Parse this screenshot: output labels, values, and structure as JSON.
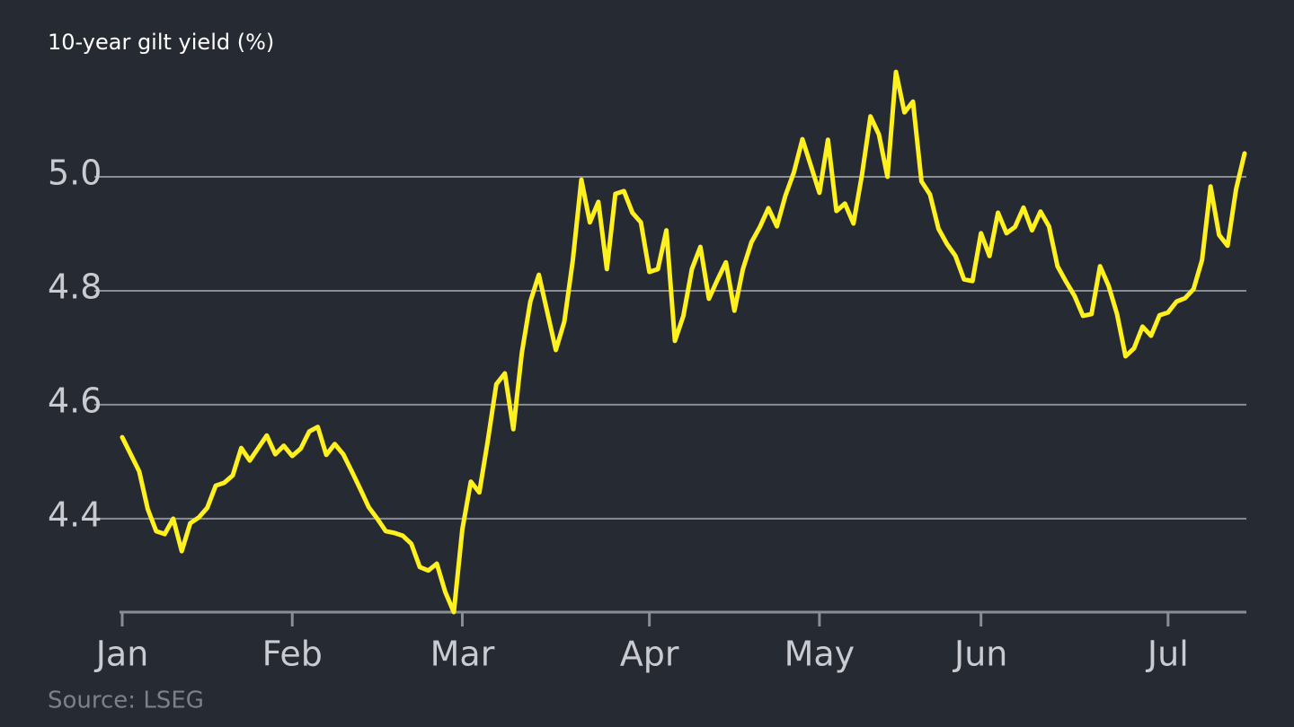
{
  "chart_data": {
    "type": "line",
    "title": "10-year gilt yield (%)",
    "source": "Source: LSEG",
    "categories": [
      "Jan",
      null,
      null,
      null,
      null,
      null,
      null,
      null,
      null,
      null,
      null,
      null,
      null,
      null,
      null,
      null,
      null,
      null,
      null,
      null,
      "Feb",
      null,
      null,
      null,
      null,
      null,
      null,
      null,
      null,
      null,
      null,
      null,
      null,
      null,
      null,
      null,
      null,
      null,
      null,
      null,
      "Mar",
      null,
      null,
      null,
      null,
      null,
      null,
      null,
      null,
      null,
      null,
      null,
      null,
      null,
      null,
      null,
      null,
      null,
      null,
      null,
      null,
      null,
      "Apr",
      null,
      null,
      null,
      null,
      null,
      null,
      null,
      null,
      null,
      null,
      null,
      null,
      null,
      null,
      null,
      null,
      null,
      null,
      null,
      "May",
      null,
      null,
      null,
      null,
      null,
      null,
      null,
      null,
      null,
      null,
      null,
      null,
      null,
      null,
      null,
      null,
      null,
      null,
      "Jun",
      null,
      null,
      null,
      null,
      null,
      null,
      null,
      null,
      null,
      null,
      null,
      null,
      null,
      null,
      null,
      null,
      null,
      null,
      null,
      null,
      null,
      "Jul",
      null,
      null,
      null,
      null,
      null,
      null,
      null,
      null,
      null
    ],
    "series": [
      {
        "name": "10-year gilt yield",
        "color": "#fff01f",
        "values": [
          4.543,
          4.513,
          4.483,
          4.417,
          4.378,
          4.373,
          4.4,
          4.343,
          4.392,
          4.402,
          4.419,
          4.458,
          4.463,
          4.476,
          4.524,
          4.502,
          4.524,
          4.546,
          4.513,
          4.528,
          4.51,
          4.523,
          4.553,
          4.561,
          4.512,
          4.531,
          4.513,
          4.483,
          4.452,
          4.42,
          4.4,
          4.378,
          4.375,
          4.37,
          4.356,
          4.315,
          4.309,
          4.321,
          4.271,
          4.236,
          4.381,
          4.465,
          4.446,
          4.537,
          4.636,
          4.655,
          4.557,
          4.691,
          4.781,
          4.828,
          4.762,
          4.696,
          4.746,
          4.854,
          4.995,
          4.92,
          4.956,
          4.838,
          4.97,
          4.975,
          4.937,
          4.92,
          4.833,
          4.838,
          4.906,
          4.712,
          4.756,
          4.838,
          4.877,
          4.786,
          4.819,
          4.85,
          4.765,
          4.838,
          4.885,
          4.912,
          4.945,
          4.913,
          4.967,
          5.008,
          5.066,
          5.019,
          4.972,
          5.065,
          4.94,
          4.953,
          4.918,
          5.003,
          5.106,
          5.074,
          5.0,
          5.184,
          5.113,
          5.132,
          4.992,
          4.969,
          4.909,
          4.882,
          4.861,
          4.82,
          4.817,
          4.901,
          4.861,
          4.937,
          4.901,
          4.912,
          4.946,
          4.906,
          4.939,
          4.913,
          4.843,
          4.816,
          4.791,
          4.756,
          4.759,
          4.843,
          4.809,
          4.759,
          4.685,
          4.699,
          4.737,
          4.721,
          4.757,
          4.762,
          4.781,
          4.787,
          4.803,
          4.854,
          4.983,
          4.898,
          4.879,
          4.978,
          5.041
        ]
      }
    ],
    "ylim": [
      4.236,
      5.2
    ],
    "yticks": [
      4.4,
      4.6,
      4.8,
      {
        "value": 5,
        "label": "5.0"
      }
    ],
    "grid": true
  }
}
